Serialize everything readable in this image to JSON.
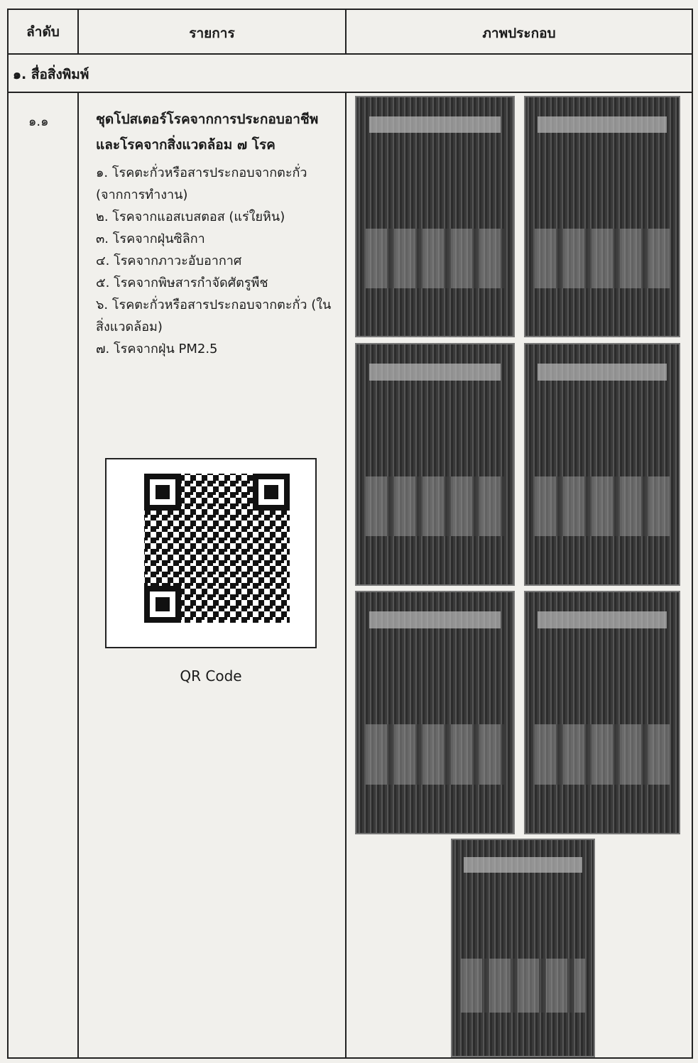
{
  "table": {
    "headers": [
      "ลำดับ",
      "รายการ",
      "ภาพประกอบ"
    ],
    "sections": [
      {
        "title": "๑. สื่อสิ่งพิมพ์",
        "items": [
          {
            "number": "๑.๑",
            "title": "ชุดโปสเตอร์โรคจากการประกอบอาชีพและโรคจากสิ่งแวดล้อม ๗ โรค",
            "list": [
              "๑. โรคตะกั่วหรือสารประกอบจากตะกั่ว (จากการทำงาน)",
              "๒. โรคจากแอสเบสตอส (แร่ใยหิน)",
              "๓. โรคจากฝุ่นซิลิกา",
              "๔. โรคจากภาวะอับอากาศ",
              "๕. โรคจากพิษสารกำจัดศัตรูพืช",
              "๖. โรคตะกั่วหรือสารประกอบจากตะกั่ว (ในสิ่งแวดล้อม)",
              "๗. โรคจากฝุ่น PM2.5"
            ],
            "qr_caption": "QR Code"
          }
        ]
      }
    ]
  }
}
